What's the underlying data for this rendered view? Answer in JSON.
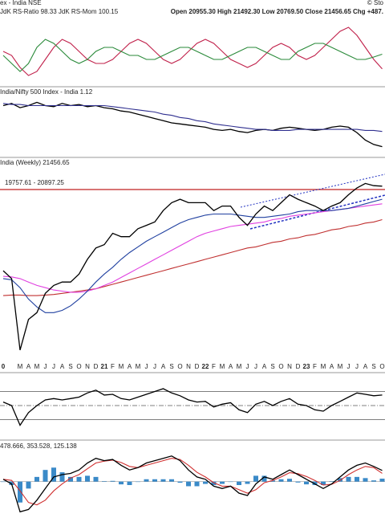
{
  "header": {
    "title": "ex - India NSE",
    "quote": "Open 20955.30 High 21492.30 Low 20769.50 Close 21456.65 Chg +487.",
    "credit": "© Sto"
  },
  "chart_data": [
    {
      "type": "line",
      "title": "JdK RS-Ratio 98.33 JdK RS-Mom 100.15",
      "ylim": [
        96.5,
        104.5
      ],
      "series": [
        {
          "color": "#c0204a",
          "values": [
            100.5,
            100,
            98.5,
            97.5,
            98,
            99.5,
            101,
            102,
            101.5,
            100.5,
            99.5,
            99,
            99,
            99.5,
            100.5,
            101.5,
            102,
            101.5,
            100.5,
            99.5,
            99,
            99.5,
            100.5,
            101.5,
            102,
            101.5,
            100.5,
            99.5,
            99,
            98.5,
            99,
            100,
            101,
            101.5,
            101,
            100,
            99.5,
            100,
            101,
            102,
            103,
            103.5,
            102.5,
            101,
            99.5,
            98.33
          ]
        },
        {
          "color": "#2a8a3a",
          "values": [
            100,
            99,
            98,
            99,
            101,
            102,
            101.5,
            100.5,
            99.5,
            99,
            99.5,
            100.5,
            101,
            101,
            100.5,
            100,
            100,
            99.5,
            99.5,
            100,
            100.5,
            101,
            101,
            100.5,
            100,
            99.5,
            99.5,
            100,
            100.5,
            101,
            101,
            100.5,
            100,
            99.5,
            99.5,
            100.5,
            101,
            101.5,
            101.5,
            101,
            100.5,
            100,
            99.5,
            99.5,
            99.8,
            100.15
          ]
        }
      ]
    },
    {
      "type": "line",
      "title": "India/Nifty 500 Index - India 1.12",
      "ylim": [
        1.05,
        1.6
      ],
      "series": [
        {
          "color": "#000000",
          "values": [
            1.5,
            1.52,
            1.48,
            1.5,
            1.53,
            1.5,
            1.49,
            1.52,
            1.5,
            1.51,
            1.49,
            1.5,
            1.48,
            1.47,
            1.45,
            1.44,
            1.42,
            1.4,
            1.38,
            1.36,
            1.34,
            1.33,
            1.32,
            1.31,
            1.3,
            1.28,
            1.27,
            1.28,
            1.26,
            1.25,
            1.27,
            1.28,
            1.27,
            1.29,
            1.3,
            1.29,
            1.28,
            1.27,
            1.28,
            1.3,
            1.31,
            1.3,
            1.25,
            1.18,
            1.14,
            1.12
          ]
        },
        {
          "color": "#303090",
          "values": [
            1.52,
            1.51,
            1.51,
            1.5,
            1.5,
            1.5,
            1.5,
            1.5,
            1.5,
            1.5,
            1.5,
            1.5,
            1.5,
            1.49,
            1.48,
            1.47,
            1.46,
            1.45,
            1.44,
            1.42,
            1.41,
            1.39,
            1.38,
            1.36,
            1.35,
            1.33,
            1.32,
            1.31,
            1.3,
            1.29,
            1.28,
            1.28,
            1.27,
            1.27,
            1.27,
            1.28,
            1.28,
            1.28,
            1.28,
            1.28,
            1.28,
            1.28,
            1.28,
            1.27,
            1.27,
            1.26
          ]
        }
      ]
    },
    {
      "type": "line",
      "title": "India (Weekly) 21456.65",
      "subtitle": "19757.61 - 20897.25",
      "ylim": [
        6000,
        23000
      ],
      "categories": [
        "0",
        null,
        "M",
        "A",
        "M",
        "J",
        "J",
        "A",
        "S",
        "O",
        "N",
        "D",
        "21",
        "F",
        "M",
        "A",
        "M",
        "J",
        "J",
        "A",
        "S",
        "O",
        "N",
        "D",
        "22",
        "F",
        "M",
        "A",
        "M",
        "J",
        "J",
        "A",
        "S",
        "O",
        "N",
        "D",
        "23",
        "F",
        "M",
        "A",
        "M",
        "J",
        "J",
        "A",
        "S",
        "O"
      ],
      "series": [
        {
          "color": "#c03030",
          "values": [
            11800,
            11850,
            11850,
            11800,
            11800,
            11850,
            11900,
            12000,
            12100,
            12200,
            12300,
            12400,
            12600,
            12800,
            13000,
            13200,
            13400,
            13600,
            13800,
            14000,
            14200,
            14400,
            14600,
            14800,
            15000,
            15200,
            15400,
            15600,
            15800,
            16000,
            16100,
            16300,
            16500,
            16600,
            16800,
            16900,
            17100,
            17200,
            17400,
            17600,
            17700,
            17900,
            18000,
            18200,
            18300,
            18500
          ]
        },
        {
          "color": "#e040e0",
          "values": [
            13500,
            13450,
            13300,
            13000,
            12700,
            12500,
            12300,
            12200,
            12100,
            12100,
            12200,
            12400,
            12700,
            13000,
            13400,
            13800,
            14200,
            14600,
            15000,
            15400,
            15800,
            16200,
            16600,
            17000,
            17300,
            17500,
            17700,
            17900,
            18000,
            18100,
            18200,
            18300,
            18500,
            18600,
            18800,
            18900,
            19000,
            19100,
            19200,
            19300,
            19400,
            19500,
            19600,
            19700,
            19800,
            19900
          ]
        },
        {
          "color": "#2040a0",
          "values": [
            13300,
            13200,
            12500,
            11500,
            10800,
            10300,
            10300,
            10500,
            10900,
            11500,
            12200,
            13000,
            13700,
            14300,
            15000,
            15600,
            16100,
            16600,
            17000,
            17400,
            17800,
            18200,
            18500,
            18700,
            18900,
            19000,
            19000,
            19000,
            18900,
            18800,
            18700,
            18700,
            18800,
            18900,
            19000,
            19200,
            19300,
            19300,
            19300,
            19300,
            19400,
            19500,
            19700,
            19900,
            20100,
            20300
          ]
        },
        {
          "color": "#000000",
          "values": [
            14000,
            13300,
            7000,
            9700,
            10300,
            12000,
            12700,
            13000,
            13000,
            13700,
            15000,
            16000,
            16300,
            17300,
            17000,
            17000,
            17700,
            18000,
            18300,
            19300,
            20000,
            20300,
            20000,
            20000,
            20000,
            19300,
            19700,
            19700,
            18700,
            18000,
            19000,
            19700,
            19300,
            20000,
            20700,
            20300,
            20000,
            19700,
            19300,
            19700,
            20000,
            20700,
            21300,
            21700,
            21500,
            21456.65
          ]
        }
      ]
    },
    {
      "type": "line",
      "ylim": [
        10,
        90
      ],
      "levels": [
        70,
        50,
        30
      ],
      "series": [
        {
          "color": "#000000",
          "values": [
            55,
            50,
            22,
            40,
            50,
            58,
            60,
            58,
            60,
            62,
            68,
            72,
            65,
            66,
            60,
            58,
            62,
            66,
            70,
            74,
            68,
            64,
            58,
            55,
            56,
            48,
            52,
            54,
            44,
            40,
            52,
            56,
            50,
            56,
            60,
            52,
            50,
            44,
            42,
            50,
            56,
            62,
            68,
            66,
            64,
            65
          ]
        }
      ]
    },
    {
      "type": "line",
      "title": "478.666, 353.528, 125.138",
      "ylim": [
        -1600,
        1300
      ],
      "histogram": {
        "color": "#3a8ac8",
        "values": [
          0,
          -150,
          -900,
          -300,
          200,
          500,
          600,
          400,
          200,
          200,
          250,
          200,
          20,
          30,
          -120,
          -150,
          0,
          100,
          100,
          100,
          100,
          -50,
          -200,
          -200,
          -100,
          -150,
          -100,
          0,
          -150,
          -100,
          250,
          250,
          50,
          100,
          120,
          -40,
          -120,
          -150,
          -150,
          20,
          150,
          200,
          200,
          150,
          50,
          125.138
        ]
      },
      "series": [
        {
          "color": "#d03030",
          "values": [
            100,
            50,
            -400,
            -900,
            -1000,
            -800,
            -400,
            -100,
            150,
            300,
            550,
            800,
            880,
            920,
            820,
            650,
            600,
            700,
            800,
            900,
            1000,
            950,
            700,
            400,
            200,
            -50,
            -200,
            -200,
            -350,
            -500,
            -350,
            -50,
            50,
            200,
            380,
            340,
            220,
            50,
            -150,
            -120,
            50,
            300,
            500,
            650,
            600,
            353.528
          ]
        },
        {
          "color": "#000000",
          "values": [
            100,
            -100,
            -1300,
            -1200,
            -800,
            -300,
            200,
            300,
            350,
            500,
            800,
            1000,
            900,
            950,
            700,
            500,
            600,
            800,
            900,
            1000,
            1100,
            900,
            500,
            200,
            100,
            -200,
            -300,
            -200,
            -500,
            -600,
            -100,
            200,
            100,
            300,
            500,
            300,
            100,
            -100,
            -300,
            -100,
            200,
            500,
            700,
            800,
            650,
            478.666
          ]
        }
      ]
    }
  ]
}
